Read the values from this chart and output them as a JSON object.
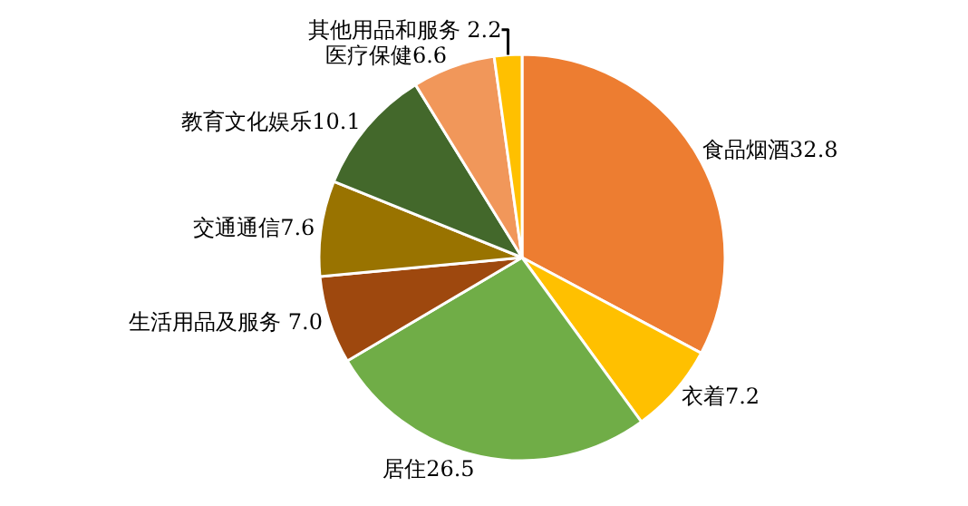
{
  "chart_data": {
    "type": "pie",
    "categories": [
      "食品烟酒",
      "衣着",
      "居住",
      "生活用品及服务",
      "交通通信",
      "教育文化娱乐",
      "医疗保健",
      "其他用品和服务"
    ],
    "values": [
      32.8,
      7.2,
      26.5,
      7.0,
      7.6,
      10.1,
      6.6,
      2.2
    ],
    "value_labels": [
      "32.8",
      "7.2",
      "26.5",
      " 7.0",
      "7.6",
      "10.1",
      "6.6",
      " 2.2"
    ],
    "colors": [
      "#ed7d31",
      "#ffc000",
      "#70ad47",
      "#9e480e",
      "#997300",
      "#43682b",
      "#f1975a",
      "#ffc000"
    ],
    "legend": false
  }
}
